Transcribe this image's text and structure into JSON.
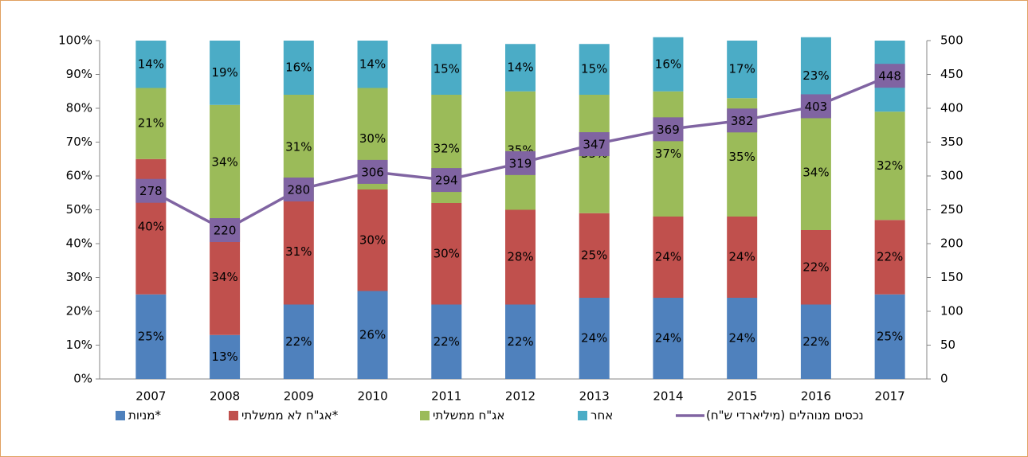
{
  "chart_data": {
    "type": "stacked_bar_line",
    "categories": [
      "2007",
      "2008",
      "2009",
      "2010",
      "2011",
      "2012",
      "2013",
      "2014",
      "2015",
      "2016",
      "2017"
    ],
    "series": [
      {
        "name": "מניות*",
        "color": "#4f81bd",
        "values": [
          25,
          13,
          22,
          26,
          22,
          22,
          24,
          24,
          24,
          22,
          25
        ],
        "value_labels": [
          "25%",
          "13%",
          "22%",
          "26%",
          "22%",
          "22%",
          "24%",
          "24%",
          "24%",
          "22%",
          "25%"
        ]
      },
      {
        "name": "אג\"ח לא ממשלתי*",
        "color": "#c0504d",
        "values": [
          40,
          34,
          31,
          30,
          30,
          28,
          25,
          24,
          24,
          22,
          22
        ],
        "value_labels": [
          "40%",
          "34%",
          "31%",
          "30%",
          "30%",
          "28%",
          "25%",
          "24%",
          "24%",
          "22%",
          "22%"
        ]
      },
      {
        "name": "אג\"ח ממשלתי",
        "color": "#9bbb59",
        "values": [
          21,
          34,
          31,
          30,
          32,
          35,
          35,
          37,
          35,
          34,
          32
        ],
        "value_labels": [
          "21%",
          "34%",
          "31%",
          "30%",
          "32%",
          "35%",
          "35%",
          "37%",
          "35%",
          "34%",
          "32%"
        ]
      },
      {
        "name": "אחר",
        "color": "#4bacc6",
        "values": [
          14,
          19,
          16,
          14,
          15,
          14,
          15,
          16,
          17,
          23,
          21
        ],
        "value_labels": [
          "14%",
          "19%",
          "16%",
          "14%",
          "15%",
          "14%",
          "15%",
          "16%",
          "17%",
          "23%",
          "21%"
        ]
      },
      {
        "name": "נכסים מנוהלים (מיליארדי ש\"ח)",
        "color": "#8064a2",
        "axis": "y2",
        "values": [
          278,
          220,
          280,
          306,
          294,
          319,
          347,
          369,
          382,
          403,
          448
        ]
      }
    ],
    "ylim": [
      0,
      100
    ],
    "yticks": [
      {
        "value": 0,
        "label": "0%"
      },
      {
        "value": 10,
        "label": "10%"
      },
      {
        "value": 20,
        "label": "20%"
      },
      {
        "value": 30,
        "label": "30%"
      },
      {
        "value": 40,
        "label": "40%"
      },
      {
        "value": 50,
        "label": "50%"
      },
      {
        "value": 60,
        "label": "60%"
      },
      {
        "value": 70,
        "label": "70%"
      },
      {
        "value": 80,
        "label": "80%"
      },
      {
        "value": 90,
        "label": "90%"
      },
      {
        "value": 100,
        "label": "100%"
      }
    ],
    "y2lim": [
      0,
      500
    ],
    "y2ticks": [
      0,
      50,
      100,
      150,
      200,
      250,
      300,
      350,
      400,
      450,
      500
    ],
    "legend": "bottom"
  }
}
